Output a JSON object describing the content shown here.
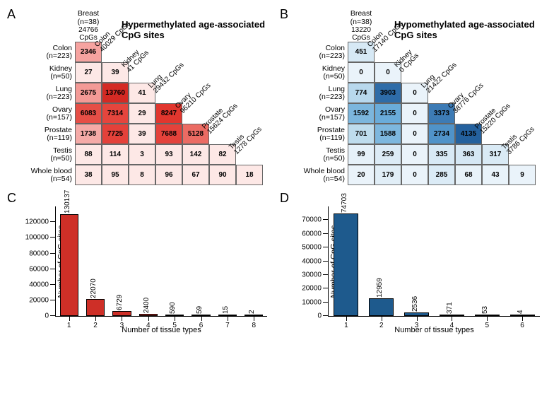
{
  "panelA": {
    "label": "A",
    "title": "Hypermethylated age-associated CpG sites",
    "top_label": {
      "name": "Breast (n=38)",
      "sub": "24766 CpGs"
    },
    "rows": [
      "Colon",
      "Kidney",
      "Lung",
      "Ovary",
      "Prostate",
      "Testis",
      "Whole blood"
    ],
    "row_n": [
      "(n=223)",
      "(n=50)",
      "(n=223)",
      "(n=157)",
      "(n=119)",
      "(n=50)",
      "(n=54)"
    ],
    "diag_labels": [
      {
        "name": "Colon",
        "sub": "40029 CpGs"
      },
      {
        "name": "Kidney",
        "sub": "41 CpGs"
      },
      {
        "name": "Lung",
        "sub": "29432 CpGs"
      },
      {
        "name": "Ovary",
        "sub": "96210 CpGs"
      },
      {
        "name": "Prostate",
        "sub": "15624 CpGs"
      },
      {
        "name": "Testis",
        "sub": "1278 CpGs"
      }
    ],
    "cells": [
      [
        "2346"
      ],
      [
        "27",
        "39"
      ],
      [
        "2675",
        "13760",
        "41"
      ],
      [
        "6083",
        "7314",
        "29",
        "8247"
      ],
      [
        "1738",
        "7725",
        "39",
        "7688",
        "5128"
      ],
      [
        "88",
        "114",
        "3",
        "93",
        "142",
        "82"
      ],
      [
        "38",
        "95",
        "8",
        "96",
        "67",
        "90",
        "18"
      ]
    ],
    "cell_colors": [
      [
        "#f6a3a0"
      ],
      [
        "#fde8e6",
        "#fde8e6"
      ],
      [
        "#f39a96",
        "#d42a24",
        "#fde8e6"
      ],
      [
        "#e64e46",
        "#e5453d",
        "#fde8e6",
        "#e1362e"
      ],
      [
        "#f5aaa7",
        "#e4413a",
        "#fde8e6",
        "#e4423b",
        "#eb6b63"
      ],
      [
        "#fde8e6",
        "#fde8e6",
        "#fde8e6",
        "#fde8e6",
        "#fde8e6",
        "#fde8e6"
      ],
      [
        "#fde8e6",
        "#fde8e6",
        "#fde8e6",
        "#fde8e6",
        "#fde8e6",
        "#fde8e6",
        "#fde8e6"
      ]
    ],
    "color_scale_min": "#fde8e6",
    "color_scale_max": "#d42a24"
  },
  "panelB": {
    "label": "B",
    "title": "Hypomethylated age-associated CpG sites",
    "top_label": {
      "name": "Breast (n=38)",
      "sub": "13220 CpGs"
    },
    "rows": [
      "Colon",
      "Kidney",
      "Lung",
      "Ovary",
      "Prostate",
      "Testis",
      "Whole blood"
    ],
    "row_n": [
      "(n=223)",
      "(n=50)",
      "(n=223)",
      "(n=157)",
      "(n=119)",
      "(n=50)",
      "(n=54)"
    ],
    "diag_labels": [
      {
        "name": "Colon",
        "sub": "17140 CpGs"
      },
      {
        "name": "Kidney",
        "sub": "0 CpGs"
      },
      {
        "name": "Lung",
        "sub": "21422 CpGs"
      },
      {
        "name": "Ovary",
        "sub": "38776 CpGs"
      },
      {
        "name": "Prostate",
        "sub": "15220 CpGs"
      },
      {
        "name": "Testis",
        "sub": "3786 CpGs"
      }
    ],
    "cells": [
      [
        "451"
      ],
      [
        "0",
        "0"
      ],
      [
        "774",
        "3903",
        "0"
      ],
      [
        "1592",
        "2155",
        "0",
        "3373"
      ],
      [
        "701",
        "1588",
        "0",
        "2734",
        "4135"
      ],
      [
        "99",
        "259",
        "0",
        "335",
        "363",
        "317"
      ],
      [
        "20",
        "179",
        "0",
        "285",
        "68",
        "43",
        "9"
      ]
    ],
    "cell_colors": [
      [
        "#d7e9f5"
      ],
      [
        "#eaf3fa",
        "#eaf3fa"
      ],
      [
        "#b8d8ed",
        "#2e6ca8",
        "#eaf3fa"
      ],
      [
        "#7cb6dd",
        "#6aacda",
        "#eaf3fa",
        "#3d7bb5"
      ],
      [
        "#bedced",
        "#7db7de",
        "#eaf3fa",
        "#5093c9",
        "#24619e"
      ],
      [
        "#e6f1f9",
        "#dcebf6",
        "#eaf3fa",
        "#d8e9f5",
        "#d5e7f4",
        "#d9eaf5"
      ],
      [
        "#eaf3fa",
        "#e1eef7",
        "#eaf3fa",
        "#dbebf6",
        "#e8f2f9",
        "#e9f3fa",
        "#eaf3fa"
      ]
    ],
    "color_scale_min": "#eaf3fa",
    "color_scale_max": "#24619e"
  },
  "panelC": {
    "label": "C",
    "type": "bar",
    "categories": [
      "1",
      "2",
      "3",
      "4",
      "5",
      "6",
      "7",
      "8"
    ],
    "values": [
      130137,
      22070,
      6729,
      2400,
      590,
      59,
      15,
      2
    ],
    "bar_color": "#ce2f27",
    "ylim": [
      0,
      140000
    ],
    "yticks": [
      0,
      20000,
      40000,
      60000,
      80000,
      100000,
      120000
    ],
    "ylabel": "Number of CpG sites",
    "xlabel": "Number of tissue types",
    "bar_width": 0.7,
    "label_fontsize": 11
  },
  "panelD": {
    "label": "D",
    "type": "bar",
    "categories": [
      "1",
      "2",
      "3",
      "4",
      "5",
      "6"
    ],
    "values": [
      74703,
      12959,
      2536,
      371,
      53,
      4
    ],
    "bar_color": "#1e5a8d",
    "ylim": [
      0,
      80000
    ],
    "yticks": [
      0,
      10000,
      20000,
      30000,
      40000,
      50000,
      60000,
      70000
    ],
    "ylabel": "Number of CpG sites",
    "xlabel": "Number of tissue types",
    "bar_width": 0.7,
    "label_fontsize": 11
  }
}
